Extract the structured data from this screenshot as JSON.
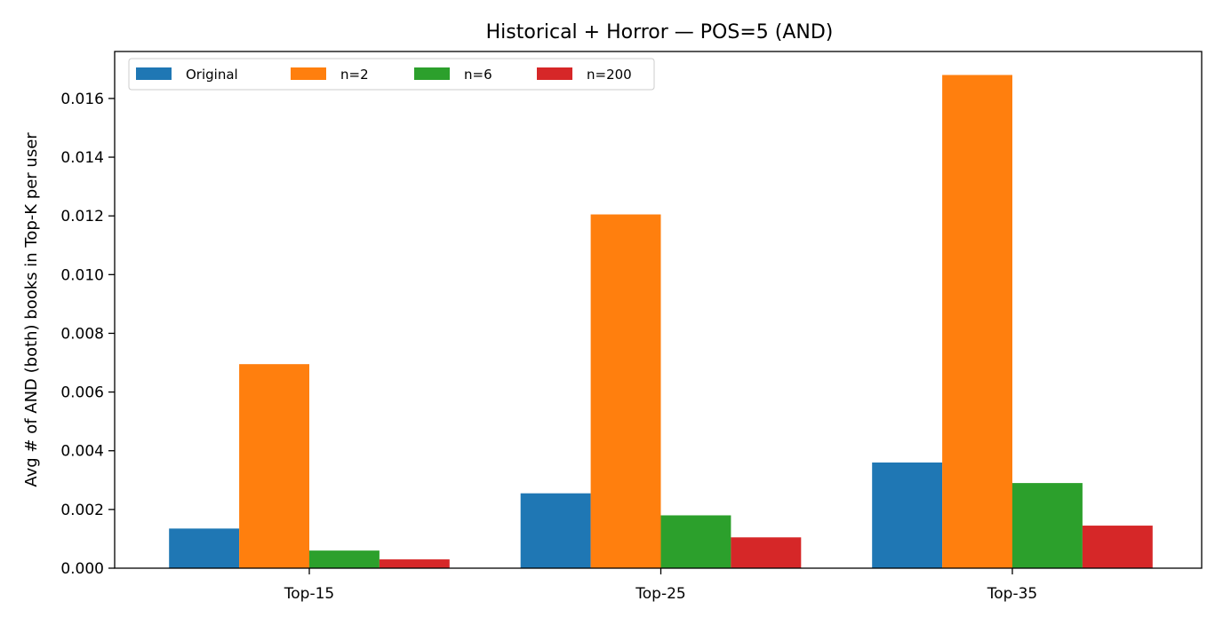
{
  "chart_data": {
    "type": "bar",
    "title": "Historical + Horror — POS=5 (AND)",
    "xlabel": "",
    "ylabel": "Avg # of AND (both) books in Top-K per user",
    "categories": [
      "Top-15",
      "Top-25",
      "Top-35"
    ],
    "series": [
      {
        "name": "Original",
        "color": "#1f77b4",
        "values": [
          0.00135,
          0.00255,
          0.0036
        ]
      },
      {
        "name": "n=2",
        "color": "#ff7f0e",
        "values": [
          0.00695,
          0.01205,
          0.0168
        ]
      },
      {
        "name": "n=6",
        "color": "#2ca02c",
        "values": [
          0.0006,
          0.0018,
          0.0029
        ]
      },
      {
        "name": "n=200",
        "color": "#d62728",
        "values": [
          0.0003,
          0.00105,
          0.00145
        ]
      }
    ],
    "ylim": [
      0,
      0.0176
    ],
    "yticks": [
      "0.000",
      "0.002",
      "0.004",
      "0.006",
      "0.008",
      "0.010",
      "0.012",
      "0.014",
      "0.016"
    ],
    "grid": false,
    "legend": "top-left"
  }
}
